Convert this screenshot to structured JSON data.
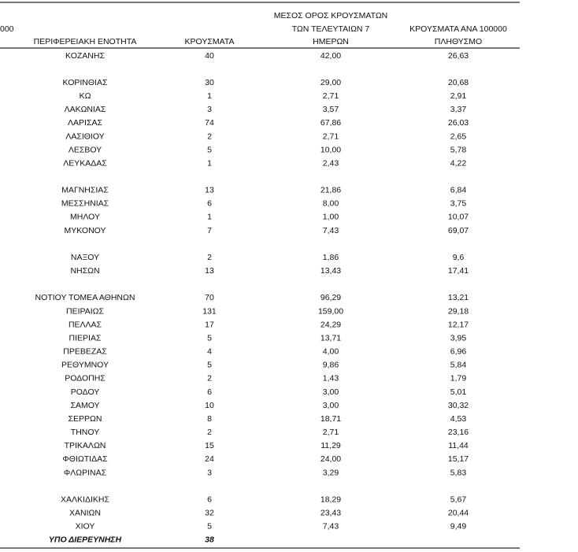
{
  "header": {
    "cut": "000",
    "region": "ΠΕΡΙΦΕΡΕΙΑΚΗ ΕΝΟΤΗΤΑ",
    "cases": "ΚΡΟΥΣΜΑΤΑ",
    "avg": [
      "ΜΕΣΟΣ ΟΡΟΣ ΚΡΟΥΣΜΑΤΩΝ",
      "ΤΩΝ ΤΕΛΕΥΤΑΙΩΝ 7",
      "ΗΜΕΡΩΝ"
    ],
    "per": [
      "ΚΡΟΥΣΜΑΤΑ ΑΝΑ 100000",
      "ΠΛΗΘΥΣΜΟ"
    ]
  },
  "groups": [
    [
      [
        "ΚΟΖΑΝΗΣ",
        "40",
        "42,00",
        "26,63"
      ]
    ],
    [
      [
        "ΚΟΡΙΝΘΙΑΣ",
        "30",
        "29,00",
        "20,68"
      ],
      [
        "ΚΩ",
        "1",
        "2,71",
        "2,91"
      ],
      [
        "ΛΑΚΩΝΙΑΣ",
        "3",
        "3,57",
        "3,37"
      ],
      [
        "ΛΑΡΙΣΑΣ",
        "74",
        "67,86",
        "26,03"
      ],
      [
        "ΛΑΣΙΘΙΟΥ",
        "2",
        "2,71",
        "2,65"
      ],
      [
        "ΛΕΣΒΟΥ",
        "5",
        "10,00",
        "5,78"
      ],
      [
        "ΛΕΥΚΑΔΑΣ",
        "1",
        "2,43",
        "4,22"
      ]
    ],
    [
      [
        "ΜΑΓΝΗΣΙΑΣ",
        "13",
        "21,86",
        "6,84"
      ],
      [
        "ΜΕΣΣΗΝΙΑΣ",
        "6",
        "8,00",
        "3,75"
      ],
      [
        "ΜΗΛΟΥ",
        "1",
        "1,00",
        "10,07"
      ],
      [
        "ΜΥΚΟΝΟΥ",
        "7",
        "7,43",
        "69,07"
      ]
    ],
    [
      [
        "ΝΑΞΟΥ",
        "2",
        "1,86",
        "9,6"
      ],
      [
        "ΝΗΣΩΝ",
        "13",
        "13,43",
        "17,41"
      ]
    ],
    [
      [
        "ΝΟΤΙΟΥ ΤΟΜΕΑ ΑΘΗΝΩΝ",
        "70",
        "96,29",
        "13,21"
      ],
      [
        "ΠΕΙΡΑΙΩΣ",
        "131",
        "159,00",
        "29,18"
      ],
      [
        "ΠΕΛΛΑΣ",
        "17",
        "24,29",
        "12,17"
      ],
      [
        "ΠΙΕΡΙΑΣ",
        "5",
        "13,71",
        "3,95"
      ],
      [
        "ΠΡΕΒΕΖΑΣ",
        "4",
        "4,00",
        "6,96"
      ],
      [
        "ΡΕΘΥΜΝΟΥ",
        "5",
        "9,86",
        "5,84"
      ],
      [
        "ΡΟΔΟΠΗΣ",
        "2",
        "1,43",
        "1,79"
      ],
      [
        "ΡΟΔΟΥ",
        "6",
        "3,00",
        "5,01"
      ],
      [
        "ΣΑΜΟΥ",
        "10",
        "3,00",
        "30,32"
      ],
      [
        "ΣΕΡΡΩΝ",
        "8",
        "18,71",
        "4,53"
      ],
      [
        "ΤΗΝΟΥ",
        "2",
        "2,71",
        "23,16"
      ],
      [
        "ΤΡΙΚΑΛΩΝ",
        "15",
        "11,29",
        "11,44"
      ],
      [
        "ΦΘΙΩΤΙΔΑΣ",
        "24",
        "24,00",
        "15,17"
      ],
      [
        "ΦΛΩΡΙΝΑΣ",
        "3",
        "3,29",
        "5,83"
      ]
    ],
    [
      [
        "ΧΑΛΚΙΔΙΚΗΣ",
        "6",
        "18,29",
        "5,67"
      ],
      [
        "ΧΑΝΙΩΝ",
        "32",
        "23,43",
        "20,44"
      ],
      [
        "ΧΙΟΥ",
        "5",
        "7,43",
        "9,49"
      ]
    ]
  ],
  "footer_row": [
    "ΥΠΟ ΔΙΕΡΕΥΝΗΣΗ",
    "38"
  ]
}
